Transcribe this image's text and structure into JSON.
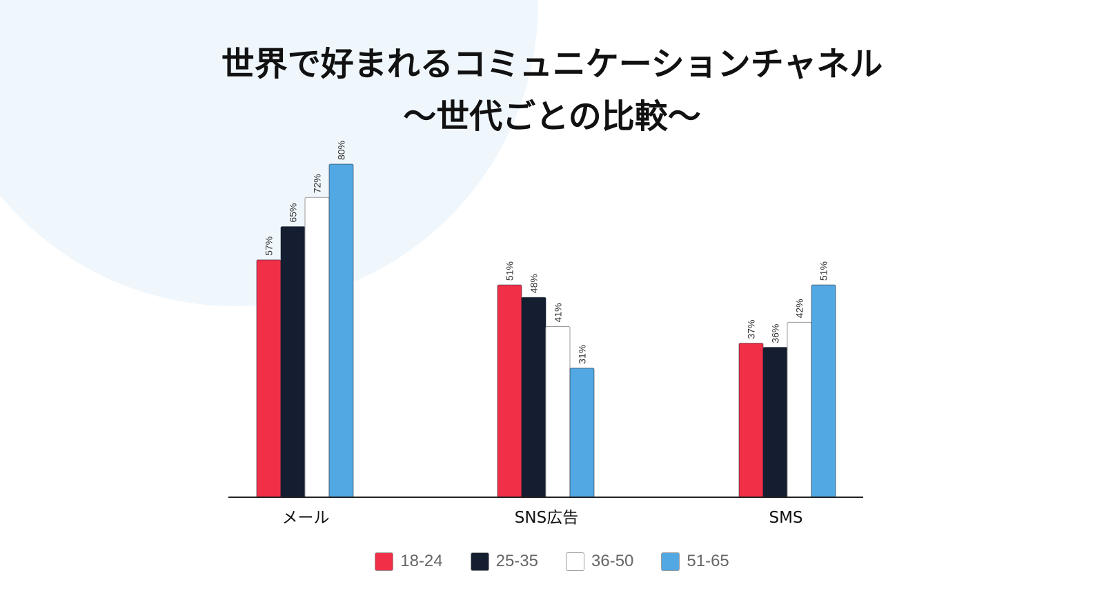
{
  "chart_data": {
    "type": "bar",
    "title_lines": [
      "世界で好まれるコミュニケーションチャネル",
      "〜世代ごとの比較〜"
    ],
    "xlabel": "",
    "ylabel": "",
    "categories": [
      "メール",
      "SNS広告",
      "SMS"
    ],
    "series": [
      {
        "name": "18-24",
        "color": "#f03047",
        "values": [
          57,
          51,
          37
        ],
        "labels": [
          "57%",
          "51%",
          "37%"
        ]
      },
      {
        "name": "25-35",
        "color": "#141e30",
        "values": [
          65,
          48,
          36
        ],
        "labels": [
          "65%",
          "48%",
          "36%"
        ]
      },
      {
        "name": "36-50",
        "color": "#ffffff",
        "values": [
          72,
          41,
          42
        ],
        "labels": [
          "72%",
          "41%",
          "42%"
        ]
      },
      {
        "name": "51-65",
        "color": "#52a8e2",
        "values": [
          80,
          31,
          51
        ],
        "labels": [
          "80%",
          "31%",
          "51%"
        ]
      }
    ],
    "ylim": [
      0,
      80
    ],
    "grid": false,
    "legend_position": "bottom-center",
    "value_label_orientation": "vertical"
  }
}
